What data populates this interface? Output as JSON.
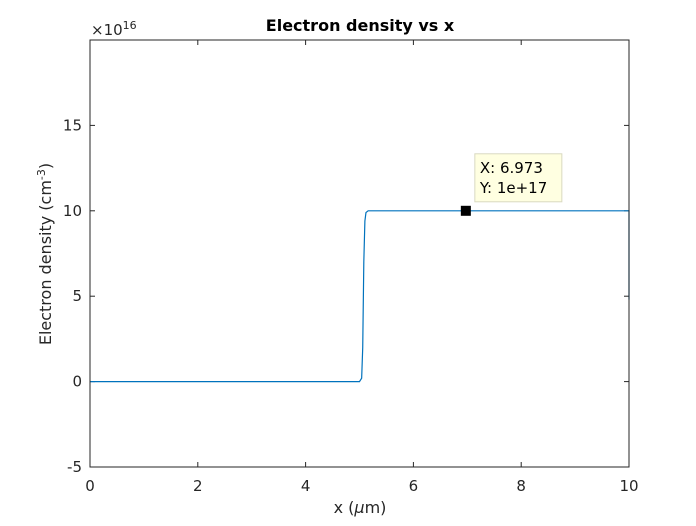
{
  "chart_data": {
    "type": "line",
    "title": "Electron density vs x",
    "xlabel": "x (",
    "xlabel_mu": "μ",
    "xlabel_unit": "m)",
    "ylabel": "Electron density (cm",
    "ylabel_exp": "-3",
    "ylabel_close": ")",
    "exponent_times": "×10",
    "exponent_power": "16",
    "xlim": [
      0,
      10
    ],
    "ylim": [
      -5,
      20
    ],
    "xticks": [
      0,
      2,
      4,
      6,
      8,
      10
    ],
    "xtick_labels": [
      "0",
      "2",
      "4",
      "6",
      "8",
      "10"
    ],
    "yticks": [
      -5,
      0,
      5,
      10,
      15
    ],
    "ytick_labels": [
      "-5",
      "0",
      "5",
      "10",
      "15"
    ],
    "grid": false,
    "line_color": "#0072BD",
    "series": [
      {
        "x": [
          0,
          1,
          2,
          3,
          4,
          4.9,
          5.0,
          5.04,
          5.06,
          5.08,
          5.1,
          5.12,
          5.16,
          5.25,
          6,
          7,
          8,
          9,
          9.98,
          10,
          10
        ],
        "values": [
          0,
          0,
          0,
          0,
          0,
          0,
          0,
          0.2,
          2,
          7,
          9.4,
          9.9,
          10,
          10,
          10,
          10,
          10,
          10,
          10,
          10,
          4.8
        ]
      }
    ],
    "datatip": {
      "x": 6.973,
      "y": 10,
      "x_text": "X: 6.973",
      "y_text": "Y: 1e+17"
    }
  }
}
